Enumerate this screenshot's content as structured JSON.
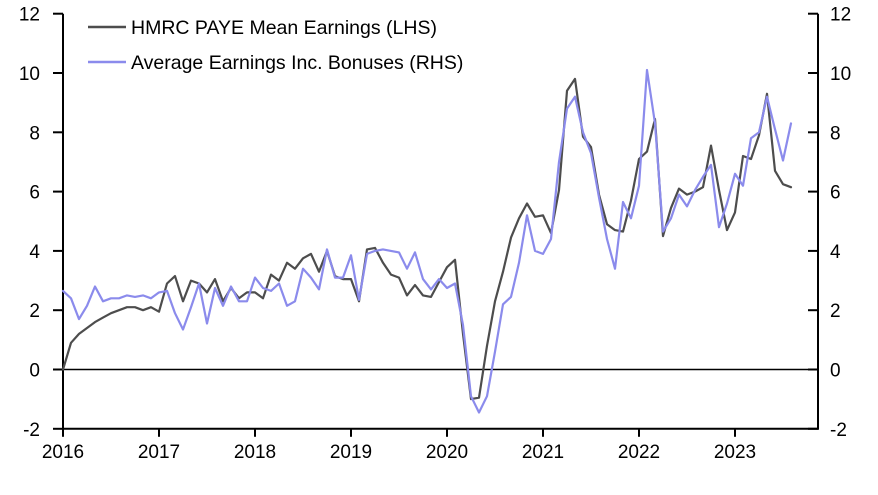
{
  "chart_data": {
    "type": "line",
    "title": "",
    "xlabel": "",
    "ylabel_left": "",
    "ylabel_right": "",
    "x_tick_labels": [
      "2016",
      "2017",
      "2018",
      "2019",
      "2020",
      "2021",
      "2022",
      "2023"
    ],
    "y_ticks_left": [
      -2,
      0,
      2,
      4,
      6,
      8,
      10,
      12
    ],
    "y_ticks_right": [
      -2,
      0,
      2,
      4,
      6,
      8,
      10,
      12
    ],
    "ylim": [
      -2,
      12
    ],
    "grid": false,
    "zero_line": true,
    "legend_position": "top-left",
    "frequency": "monthly",
    "x_start": "2016-01",
    "series": [
      {
        "name": "HMRC PAYE Mean Earnings (LHS)",
        "axis": "LHS",
        "color": "#4d4d4d",
        "values": [
          0.0,
          0.9,
          1.2,
          1.4,
          1.6,
          1.75,
          1.9,
          2.0,
          2.1,
          2.1,
          2.0,
          2.1,
          1.95,
          2.9,
          3.15,
          2.3,
          3.0,
          2.9,
          2.6,
          3.05,
          2.3,
          2.75,
          2.4,
          2.6,
          2.6,
          2.4,
          3.2,
          3.0,
          3.6,
          3.4,
          3.75,
          3.9,
          3.3,
          4.0,
          3.15,
          3.05,
          3.05,
          2.3,
          4.05,
          4.1,
          3.6,
          3.2,
          3.1,
          2.5,
          2.85,
          2.5,
          2.45,
          2.95,
          3.45,
          3.7,
          1.2,
          -1.0,
          -0.95,
          0.8,
          2.3,
          3.3,
          4.45,
          5.1,
          5.6,
          5.15,
          5.2,
          4.6,
          6.05,
          9.4,
          9.8,
          7.85,
          7.5,
          5.9,
          4.9,
          4.7,
          4.65,
          5.7,
          7.1,
          7.35,
          8.45,
          4.5,
          5.45,
          6.1,
          5.9,
          6.0,
          6.15,
          7.55,
          6.05,
          4.7,
          5.3,
          7.2,
          7.1,
          7.9,
          9.3,
          6.7,
          6.25,
          6.15
        ]
      },
      {
        "name": "Average Earnings Inc. Bonuses (RHS)",
        "axis": "RHS",
        "color": "#8b8bec",
        "values": [
          2.65,
          2.4,
          1.7,
          2.15,
          2.8,
          2.3,
          2.4,
          2.4,
          2.5,
          2.45,
          2.5,
          2.4,
          2.6,
          2.65,
          1.9,
          1.35,
          2.1,
          2.9,
          1.55,
          2.75,
          2.15,
          2.8,
          2.3,
          2.3,
          3.1,
          2.75,
          2.65,
          2.9,
          2.15,
          2.3,
          3.4,
          3.1,
          2.7,
          4.05,
          3.1,
          3.1,
          3.85,
          2.35,
          3.9,
          4.0,
          4.05,
          4.0,
          3.95,
          3.4,
          3.95,
          3.05,
          2.7,
          3.05,
          2.75,
          2.9,
          1.5,
          -0.9,
          -1.45,
          -0.9,
          0.6,
          2.2,
          2.45,
          3.6,
          5.2,
          4.0,
          3.9,
          4.4,
          7.0,
          8.8,
          9.2,
          8.0,
          7.3,
          5.8,
          4.4,
          3.4,
          5.65,
          5.1,
          6.2,
          10.1,
          8.3,
          4.65,
          5.1,
          5.9,
          5.5,
          6.05,
          6.5,
          6.9,
          4.8,
          5.6,
          6.6,
          6.2,
          7.8,
          8.0,
          9.2,
          8.1,
          7.05,
          8.3
        ]
      }
    ]
  }
}
